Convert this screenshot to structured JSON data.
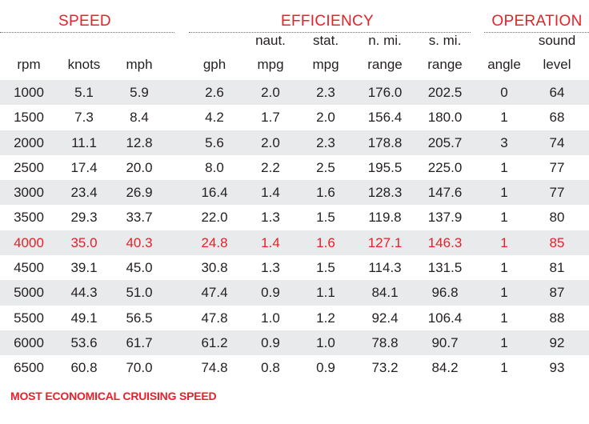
{
  "groups": [
    {
      "title": "SPEED"
    },
    {
      "title": "EFFICIENCY"
    },
    {
      "title": "OPERATION"
    }
  ],
  "columns": [
    {
      "top": "",
      "bottom": "rpm"
    },
    {
      "top": "",
      "bottom": "knots"
    },
    {
      "top": "",
      "bottom": "mph"
    },
    {
      "top": "",
      "bottom": "gph"
    },
    {
      "top": "naut.",
      "bottom": "mpg"
    },
    {
      "top": "stat.",
      "bottom": "mpg"
    },
    {
      "top": "n. mi.",
      "bottom": "range"
    },
    {
      "top": "s. mi.",
      "bottom": "range"
    },
    {
      "top": "",
      "bottom": "angle"
    },
    {
      "top": "sound",
      "bottom": "level"
    }
  ],
  "rows": [
    [
      "1000",
      "5.1",
      "5.9",
      "2.6",
      "2.0",
      "2.3",
      "176.0",
      "202.5",
      "0",
      "64"
    ],
    [
      "1500",
      "7.3",
      "8.4",
      "4.2",
      "1.7",
      "2.0",
      "156.4",
      "180.0",
      "1",
      "68"
    ],
    [
      "2000",
      "11.1",
      "12.8",
      "5.6",
      "2.0",
      "2.3",
      "178.8",
      "205.7",
      "3",
      "74"
    ],
    [
      "2500",
      "17.4",
      "20.0",
      "8.0",
      "2.2",
      "2.5",
      "195.5",
      "225.0",
      "1",
      "77"
    ],
    [
      "3000",
      "23.4",
      "26.9",
      "16.4",
      "1.4",
      "1.6",
      "128.3",
      "147.6",
      "1",
      "77"
    ],
    [
      "3500",
      "29.3",
      "33.7",
      "22.0",
      "1.3",
      "1.5",
      "119.8",
      "137.9",
      "1",
      "80"
    ],
    [
      "4000",
      "35.0",
      "40.3",
      "24.8",
      "1.4",
      "1.6",
      "127.1",
      "146.3",
      "1",
      "85"
    ],
    [
      "4500",
      "39.1",
      "45.0",
      "30.8",
      "1.3",
      "1.5",
      "114.3",
      "131.5",
      "1",
      "81"
    ],
    [
      "5000",
      "44.3",
      "51.0",
      "47.4",
      "0.9",
      "1.1",
      "84.1",
      "96.8",
      "1",
      "87"
    ],
    [
      "5500",
      "49.1",
      "56.5",
      "47.8",
      "1.0",
      "1.2",
      "92.4",
      "106.4",
      "1",
      "88"
    ],
    [
      "6000",
      "53.6",
      "61.7",
      "61.2",
      "0.9",
      "1.0",
      "78.8",
      "90.7",
      "1",
      "92"
    ],
    [
      "6500",
      "60.8",
      "70.0",
      "74.8",
      "0.8",
      "0.9",
      "73.2",
      "84.2",
      "1",
      "93"
    ]
  ],
  "highlight_row": 6,
  "footnote": "MOST ECONOMICAL CRUISING SPEED",
  "colors": {
    "accent": "#e8202a",
    "text": "#231f20",
    "row_shade": "#e9eaeb",
    "rule": "#6d6e70"
  }
}
